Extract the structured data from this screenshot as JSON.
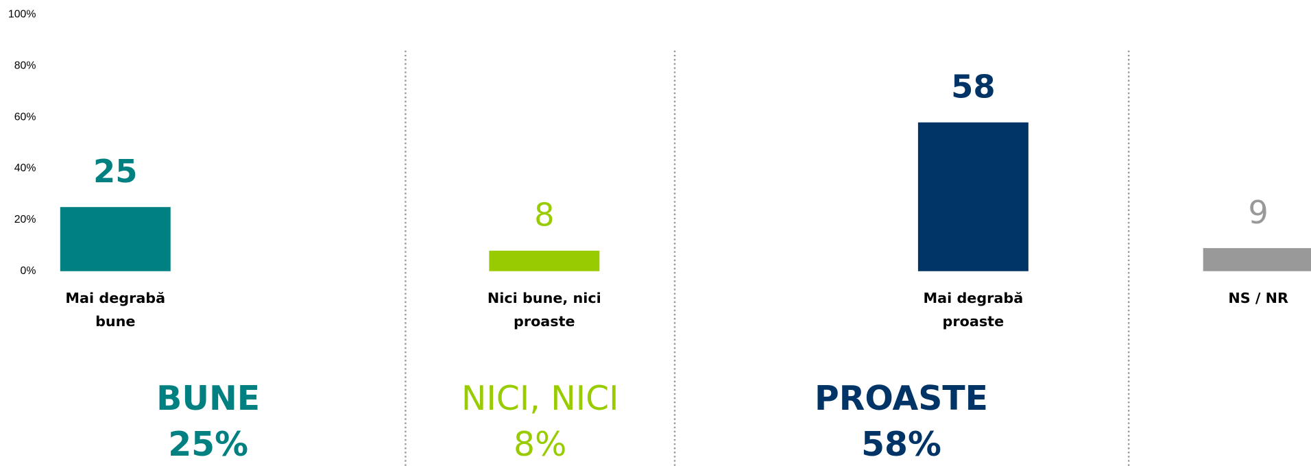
{
  "chart_data": {
    "type": "bar",
    "categories": [
      "Mai degrabă bune",
      "Nici bune, nici proaste",
      "Mai degrabă proaste",
      "NS / NR"
    ],
    "values": [
      25,
      8,
      58,
      9
    ],
    "colors": [
      "#008080",
      "#99cc00",
      "#003366",
      "#999999"
    ],
    "value_label_bold": [
      true,
      false,
      true,
      false
    ],
    "ylim": [
      0,
      100
    ],
    "yticks": [
      {
        "value": 0,
        "label": "0%"
      },
      {
        "value": 20,
        "label": "20%"
      },
      {
        "value": 40,
        "label": "40%"
      },
      {
        "value": 60,
        "label": "60%"
      },
      {
        "value": 80,
        "label": "80%"
      },
      {
        "value": 100,
        "label": "100%"
      }
    ],
    "grid": false,
    "groups": [
      {
        "name": "BUNE",
        "label": "25%",
        "color": "#008080"
      },
      {
        "name": "NICI, NICI",
        "label": "8%",
        "color": "#99cc00"
      },
      {
        "name": "PROASTE",
        "label": "58%",
        "color": "#003366"
      }
    ]
  }
}
